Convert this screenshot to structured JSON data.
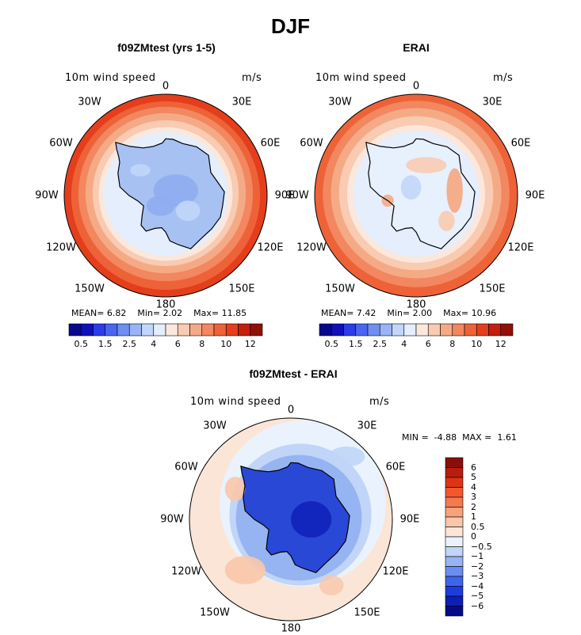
{
  "page": {
    "title": "DJF"
  },
  "chart_data": [
    {
      "type": "heatmap",
      "projection": "south-polar-stereographic",
      "title": "f09ZMtest (yrs 1-5)",
      "variable": "10m wind speed",
      "units": "m/s",
      "stats": {
        "mean": "6.82",
        "min": "2.02",
        "max": "11.85"
      },
      "colorbar_ticks": [
        "0.5",
        "1.5",
        "2.5",
        "4",
        "6",
        "8",
        "10",
        "12"
      ],
      "lon_labels": [
        "0",
        "30E",
        "60E",
        "90E",
        "120E",
        "150E",
        "180",
        "150W",
        "120W",
        "90W",
        "60W",
        "30W"
      ]
    },
    {
      "type": "heatmap",
      "projection": "south-polar-stereographic",
      "title": "ERAI",
      "variable": "10m wind speed",
      "units": "m/s",
      "stats": {
        "mean": "7.42",
        "min": "2.00",
        "max": "10.96"
      },
      "colorbar_ticks": [
        "0.5",
        "1.5",
        "2.5",
        "4",
        "6",
        "8",
        "10",
        "12"
      ],
      "lon_labels": [
        "0",
        "30E",
        "60E",
        "90E",
        "120E",
        "150E",
        "180",
        "150W",
        "120W",
        "90W",
        "60W",
        "30W"
      ]
    },
    {
      "type": "heatmap",
      "projection": "south-polar-stereographic",
      "title": "f09ZMtest - ERAI",
      "variable": "10m wind speed",
      "units": "m/s",
      "stats": {
        "min": "-4.88",
        "max": "1.61"
      },
      "colorbar_ticks": [
        "6",
        "5",
        "4",
        "3",
        "2",
        "1",
        "0.5",
        "0",
        "−0.5",
        "−1",
        "−2",
        "−3",
        "−4",
        "−5",
        "−6"
      ],
      "lon_labels": [
        "0",
        "30E",
        "60E",
        "90E",
        "120E",
        "150E",
        "180",
        "150W",
        "120W",
        "90W",
        "60W",
        "30W"
      ]
    }
  ],
  "colors": {
    "seq_scale": [
      "#08088a",
      "#1010b8",
      "#2c3ce8",
      "#4a66f0",
      "#6e8ef0",
      "#98b4f4",
      "#c2d6fa",
      "#e4eefc",
      "#fbe8dc",
      "#f8cbb2",
      "#f5aa86",
      "#f28760",
      "#ee6238",
      "#e43e1c",
      "#c41e0c",
      "#901008"
    ],
    "diff_scale": [
      "#8a0e08",
      "#b81c0c",
      "#dd3414",
      "#f2582c",
      "#f47a4e",
      "#f6a27c",
      "#f9c7aa",
      "#fbe5d6",
      "#eaf2fd",
      "#c0d5f7",
      "#96b4f2",
      "#6a8ef0",
      "#3e64ec",
      "#1c3ce0",
      "#0c1eb6",
      "#060a86"
    ],
    "antarctica_model": "#a7c1f2",
    "antarctica_erai": "#e7f0fd",
    "antarctica_diff": "#2a48d6"
  }
}
